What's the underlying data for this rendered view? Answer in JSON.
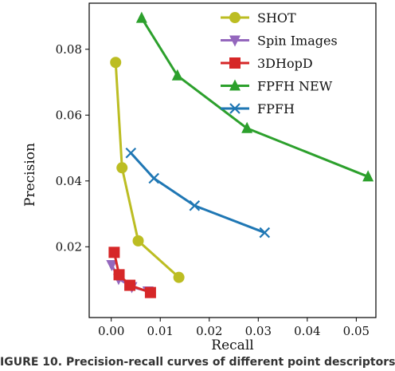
{
  "chart_data": {
    "type": "line",
    "xlabel": "Recall",
    "ylabel": "Precision",
    "xlim": [
      -0.0045,
      0.054
    ],
    "ylim": [
      -0.0015,
      0.094
    ],
    "xticks": [
      0.0,
      0.01,
      0.02,
      0.03,
      0.04,
      0.05
    ],
    "xtick_labels": [
      "0.00",
      "0.01",
      "0.02",
      "0.03",
      "0.04",
      "0.05"
    ],
    "yticks": [
      0.02,
      0.04,
      0.06,
      0.08
    ],
    "ytick_labels": [
      "0.02",
      "0.04",
      "0.06",
      "0.08"
    ],
    "grid": false,
    "legend_position": "top-right",
    "series": [
      {
        "name": "SHOT",
        "color": "#bcbd22",
        "marker": "circle",
        "x": [
          0.0009,
          0.0022,
          0.0055,
          0.0138
        ],
        "y": [
          0.076,
          0.044,
          0.0218,
          0.0107
        ]
      },
      {
        "name": "Spin Images",
        "color": "#9467bd",
        "marker": "triangle-down",
        "x": [
          0.0001,
          0.0015,
          0.0042,
          0.0075
        ],
        "y": [
          0.0145,
          0.0103,
          0.0078,
          0.0065
        ]
      },
      {
        "name": "3DHopD",
        "color": "#d62728",
        "marker": "square",
        "x": [
          0.0006,
          0.0016,
          0.0038,
          0.008
        ],
        "y": [
          0.0183,
          0.0115,
          0.0083,
          0.0061
        ]
      },
      {
        "name": "FPFH NEW",
        "color": "#2ca02c",
        "marker": "triangle-up",
        "x": [
          0.0062,
          0.0135,
          0.0277,
          0.0524
        ],
        "y": [
          0.0895,
          0.072,
          0.056,
          0.0413
        ]
      },
      {
        "name": "FPFH",
        "color": "#1f77b4",
        "marker": "x",
        "x": [
          0.004,
          0.0087,
          0.017,
          0.0313
        ],
        "y": [
          0.0485,
          0.0408,
          0.0325,
          0.0243
        ]
      }
    ]
  },
  "caption": {
    "text": "IGURE 10. Precision-recall curves of different point descriptors"
  }
}
